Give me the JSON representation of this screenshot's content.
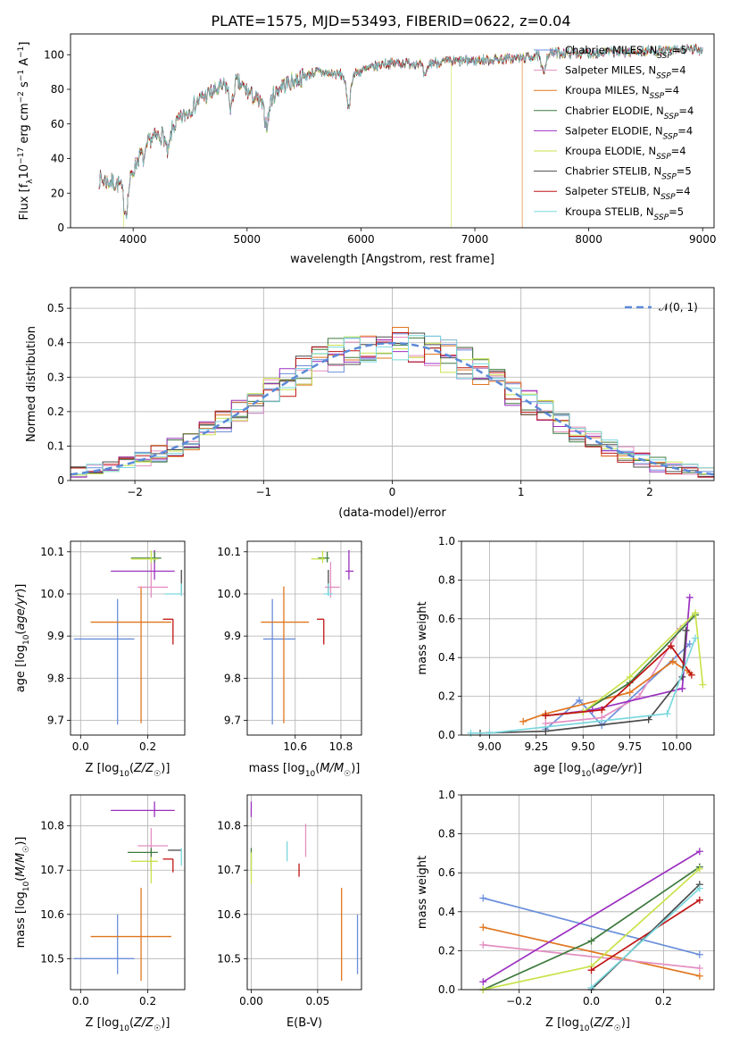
{
  "figure_title": "PLATE=1575, MJD=53493, FIBERID=0622, z=0.04",
  "colors": {
    "Chabrier MILES": "#6a8fdb",
    "Salpeter MILES": "#e38fc1",
    "Kroupa MILES": "#e0761f",
    "Chabrier ELODIE": "#3d7a3d",
    "Salpeter ELODIE": "#9b30c0",
    "Kroupa ELODIE": "#c9e34d",
    "Chabrier STELIB": "#4a4a4a",
    "Salpeter STELIB": "#c01414",
    "Kroupa STELIB": "#7ad8de"
  },
  "chart_data": [
    {
      "id": "spectrum",
      "type": "line",
      "xlabel": "wavelength [Angstrom, rest frame]",
      "ylabel": "Flux [f_λ 10^-17 erg cm^-2 s^-1 A^-1]",
      "xlim": [
        3450,
        9100
      ],
      "ylim": [
        0,
        112
      ],
      "xticks": [
        4000,
        5000,
        6000,
        7000,
        8000,
        9000
      ],
      "yticks": [
        0,
        20,
        40,
        60,
        80,
        100
      ],
      "x_range": [
        3700,
        9000
      ],
      "anchor_x": [
        3700,
        3950,
        4100,
        4300,
        4600,
        4900,
        5150,
        5300,
        5600,
        5900,
        6200,
        6500,
        6800,
        7100,
        7400,
        7700,
        8000,
        8500,
        9000
      ],
      "anchor_y": [
        28,
        24,
        50,
        55,
        75,
        85,
        70,
        82,
        90,
        88,
        95,
        95,
        96,
        97,
        98,
        101,
        101,
        102,
        103
      ],
      "features": [
        [
          3934,
          -15
        ],
        [
          4100,
          -10
        ],
        [
          4305,
          -12
        ],
        [
          4861,
          -14
        ],
        [
          5175,
          -12
        ],
        [
          5890,
          -18
        ],
        [
          6563,
          -8
        ],
        [
          7600,
          -10
        ]
      ],
      "legend": [
        {
          "label": "Chabrier MILES",
          "nssp": "5"
        },
        {
          "label": "Salpeter MILES",
          "nssp": "4"
        },
        {
          "label": "Kroupa MILES",
          "nssp": "4"
        },
        {
          "label": "Chabrier ELODIE",
          "nssp": "4"
        },
        {
          "label": "Salpeter ELODIE",
          "nssp": "4"
        },
        {
          "label": "Kroupa ELODIE",
          "nssp": "4"
        },
        {
          "label": "Chabrier STELIB",
          "nssp": "5"
        },
        {
          "label": "Salpeter STELIB",
          "nssp": "4"
        },
        {
          "label": "Kroupa STELIB",
          "nssp": "5"
        }
      ],
      "drops": [
        {
          "series": "Kroupa ELODIE",
          "x": 6790
        },
        {
          "series": "Kroupa MILES",
          "x": 7415
        },
        {
          "series": "Kroupa ELODIE",
          "x": 3920
        }
      ],
      "grid": false,
      "legend_position": "right"
    },
    {
      "id": "residuals",
      "type": "histogram",
      "xlabel": "(data-model)/error",
      "ylabel": "Normed distribution",
      "xlim": [
        -2.5,
        2.5
      ],
      "ylim": [
        0,
        0.56
      ],
      "xticks": [
        -2,
        -1,
        0,
        1,
        2
      ],
      "xticklabels": [
        "−2",
        "−1",
        "0",
        "1",
        "2"
      ],
      "yticks": [
        0.0,
        0.1,
        0.2,
        0.3,
        0.4,
        0.5
      ],
      "bins": 40,
      "reference_label": "𝒩(0, 1)",
      "reference_color": "#5b8ad8",
      "grid": true,
      "legend_position": "top-right"
    },
    {
      "id": "age-vs-Z",
      "type": "scatter",
      "xlabel": "Z [log10(Z/Z☉)]",
      "ylabel": "age  [log10(age/yr)]",
      "xlim": [
        -0.03,
        0.31
      ],
      "ylim": [
        9.665,
        10.125
      ],
      "xticks": [
        0.0,
        0.2
      ],
      "xticklabels": [
        "0.0",
        "0.2"
      ],
      "yticks": [
        9.7,
        9.8,
        9.9,
        10.0,
        10.1
      ],
      "yticklabels": [
        "9.7",
        "9.8",
        "9.9",
        "10.0",
        "10.1"
      ],
      "grid": true,
      "points": [
        {
          "series": "Chabrier MILES",
          "x": 0.11,
          "y": 9.893,
          "xerr": [
            0.13,
            0.05
          ],
          "yerr": [
            0.203,
            0.095
          ]
        },
        {
          "series": "Kroupa MILES",
          "x": 0.18,
          "y": 9.933,
          "xerr": [
            0.15,
            0.09
          ],
          "yerr": [
            0.24,
            0.085
          ]
        },
        {
          "series": "Salpeter MILES",
          "x": 0.21,
          "y": 10.016,
          "xerr": [
            0.04,
            0.05
          ],
          "yerr": [
            0.025,
            0.06
          ]
        },
        {
          "series": "Salpeter ELODIE",
          "x": 0.22,
          "y": 10.054,
          "xerr": [
            0.13,
            0.06
          ],
          "yerr": [
            0.02,
            0.05
          ]
        },
        {
          "series": "Chabrier ELODIE",
          "x": 0.22,
          "y": 10.085,
          "xerr": [
            0.07,
            0.02
          ],
          "yerr": [
            0.01,
            0.015
          ]
        },
        {
          "series": "Kroupa ELODIE",
          "x": 0.21,
          "y": 10.083,
          "xerr": [
            0.06,
            0.02
          ],
          "yerr": [
            0.01,
            0.02
          ]
        },
        {
          "series": "Salpeter STELIB",
          "x": 0.275,
          "y": 9.94,
          "xerr": [
            0.03,
            0.0
          ],
          "yerr": [
            0.06,
            0.0
          ]
        },
        {
          "series": "Chabrier STELIB",
          "x": 0.3,
          "y": 10.032,
          "xerr": [
            0.0,
            0.0
          ],
          "yerr": [
            0.03,
            0.025
          ]
        },
        {
          "series": "Kroupa STELIB",
          "x": 0.3,
          "y": 10.0,
          "xerr": [
            0.05,
            0.0
          ],
          "yerr": [
            0.005,
            0.025
          ]
        }
      ]
    },
    {
      "id": "age-vs-mass",
      "type": "scatter",
      "xlabel": "mass [log10(M/M☉)]",
      "ylabel": "",
      "xlim": [
        10.39,
        10.89
      ],
      "ylim": [
        9.665,
        10.125
      ],
      "xticks": [
        10.6,
        10.8
      ],
      "xticklabels": [
        "10.6",
        "10.8"
      ],
      "yticks": [
        9.7,
        9.8,
        9.9,
        10.0,
        10.1
      ],
      "yticklabels": [
        "9.7",
        "9.8",
        "9.9",
        "10.0",
        "10.1"
      ],
      "grid": true,
      "points": [
        {
          "series": "Chabrier MILES",
          "x": 10.5,
          "y": 9.893,
          "xerr": [
            0.04,
            0.1
          ],
          "yerr": [
            0.203,
            0.095
          ]
        },
        {
          "series": "Kroupa MILES",
          "x": 10.55,
          "y": 9.933,
          "xerr": [
            0.1,
            0.11
          ],
          "yerr": [
            0.24,
            0.085
          ]
        },
        {
          "series": "Salpeter MILES",
          "x": 10.755,
          "y": 10.016,
          "xerr": [
            0.025,
            0.04
          ],
          "yerr": [
            0.025,
            0.06
          ]
        },
        {
          "series": "Salpeter ELODIE",
          "x": 10.835,
          "y": 10.054,
          "xerr": [
            0.015,
            0.02
          ],
          "yerr": [
            0.02,
            0.05
          ]
        },
        {
          "series": "Chabrier ELODIE",
          "x": 10.74,
          "y": 10.085,
          "xerr": [
            0.04,
            0.01
          ],
          "yerr": [
            0.01,
            0.015
          ]
        },
        {
          "series": "Kroupa ELODIE",
          "x": 10.72,
          "y": 10.083,
          "xerr": [
            0.05,
            0.01
          ],
          "yerr": [
            0.01,
            0.02
          ]
        },
        {
          "series": "Salpeter STELIB",
          "x": 10.725,
          "y": 9.94,
          "xerr": [
            0.03,
            0.0
          ],
          "yerr": [
            0.06,
            0.0
          ]
        },
        {
          "series": "Chabrier STELIB",
          "x": 10.745,
          "y": 10.032,
          "xerr": [
            0.0,
            0.0
          ],
          "yerr": [
            0.03,
            0.025
          ]
        },
        {
          "series": "Kroupa STELIB",
          "x": 10.745,
          "y": 10.0,
          "xerr": [
            0.02,
            0.02
          ],
          "yerr": [
            0.005,
            0.025
          ]
        }
      ]
    },
    {
      "id": "weights-vs-age",
      "type": "line",
      "xlabel": "age  [log10(age/yr)]",
      "ylabel": "mass weight",
      "xlim": [
        8.85,
        10.2
      ],
      "ylim": [
        0.0,
        1.0
      ],
      "xticks": [
        9.0,
        9.25,
        9.5,
        9.75,
        10.0
      ],
      "xticklabels": [
        "9.00",
        "9.25",
        "9.50",
        "9.75",
        "10.00"
      ],
      "yticks": [
        0.0,
        0.2,
        0.4,
        0.6,
        0.8,
        1.0
      ],
      "yticklabels": [
        "0.0",
        "0.2",
        "0.4",
        "0.6",
        "0.8",
        "1.0"
      ],
      "grid": true,
      "series": [
        {
          "name": "Chabrier MILES",
          "x": [
            9.3,
            9.48,
            9.6,
            10.07
          ],
          "y": [
            0.03,
            0.18,
            0.05,
            0.47
          ]
        },
        {
          "name": "Salpeter MILES",
          "x": [
            9.3,
            9.6,
            9.8,
            10.02
          ],
          "y": [
            0.06,
            0.09,
            0.2,
            0.55
          ]
        },
        {
          "name": "Kroupa MILES",
          "x": [
            9.18,
            9.3,
            9.75,
            9.98,
            10.07
          ],
          "y": [
            0.07,
            0.11,
            0.22,
            0.38,
            0.32
          ]
        },
        {
          "name": "Chabrier ELODIE",
          "x": [
            9.3,
            9.5,
            9.75,
            10.1
          ],
          "y": [
            0.1,
            0.12,
            0.27,
            0.62
          ]
        },
        {
          "name": "Salpeter ELODIE",
          "x": [
            9.3,
            9.55,
            10.03,
            10.07
          ],
          "y": [
            0.1,
            0.13,
            0.24,
            0.71
          ]
        },
        {
          "name": "Kroupa ELODIE",
          "x": [
            9.3,
            9.5,
            9.75,
            10.1,
            10.14
          ],
          "y": [
            0.1,
            0.12,
            0.3,
            0.63,
            0.26
          ]
        },
        {
          "name": "Chabrier STELIB",
          "x": [
            8.95,
            9.3,
            9.85,
            10.03,
            10.05
          ],
          "y": [
            0.01,
            0.02,
            0.08,
            0.3,
            0.54
          ]
        },
        {
          "name": "Salpeter STELIB",
          "x": [
            9.3,
            9.6,
            9.97,
            10.08
          ],
          "y": [
            0.1,
            0.13,
            0.46,
            0.31
          ]
        },
        {
          "name": "Kroupa STELIB",
          "x": [
            8.9,
            9.0,
            9.95,
            10.1
          ],
          "y": [
            0.01,
            0.01,
            0.11,
            0.5
          ]
        }
      ]
    },
    {
      "id": "mass-vs-Z",
      "type": "scatter",
      "xlabel": "Z [log10(Z/Z☉)]",
      "ylabel": "mass [log10(M/M☉)]",
      "xlim": [
        -0.03,
        0.31
      ],
      "ylim": [
        10.43,
        10.87
      ],
      "xticks": [
        0.0,
        0.2
      ],
      "xticklabels": [
        "0.0",
        "0.2"
      ],
      "yticks": [
        10.5,
        10.6,
        10.7,
        10.8
      ],
      "yticklabels": [
        "10.5",
        "10.6",
        "10.7",
        "10.8"
      ],
      "grid": true,
      "points": [
        {
          "series": "Chabrier MILES",
          "x": 0.11,
          "y": 10.5,
          "xerr": [
            0.13,
            0.05
          ],
          "yerr": [
            0.035,
            0.1
          ]
        },
        {
          "series": "Kroupa MILES",
          "x": 0.18,
          "y": 10.55,
          "xerr": [
            0.15,
            0.09
          ],
          "yerr": [
            0.1,
            0.11
          ]
        },
        {
          "series": "Salpeter MILES",
          "x": 0.21,
          "y": 10.755,
          "xerr": [
            0.04,
            0.05
          ],
          "yerr": [
            0.025,
            0.04
          ]
        },
        {
          "series": "Salpeter ELODIE",
          "x": 0.22,
          "y": 10.835,
          "xerr": [
            0.13,
            0.06
          ],
          "yerr": [
            0.015,
            0.02
          ]
        },
        {
          "series": "Chabrier ELODIE",
          "x": 0.21,
          "y": 10.74,
          "xerr": [
            0.07,
            0.02
          ],
          "yerr": [
            0.04,
            0.01
          ]
        },
        {
          "series": "Kroupa ELODIE",
          "x": 0.21,
          "y": 10.72,
          "xerr": [
            0.06,
            0.02
          ],
          "yerr": [
            0.05,
            0.01
          ]
        },
        {
          "series": "Salpeter STELIB",
          "x": 0.275,
          "y": 10.725,
          "xerr": [
            0.03,
            0.0
          ],
          "yerr": [
            0.03,
            0.0
          ]
        },
        {
          "series": "Chabrier STELIB",
          "x": 0.3,
          "y": 10.745,
          "xerr": [
            0.04,
            0.0
          ],
          "yerr": [
            0.0,
            0.0
          ]
        },
        {
          "series": "Kroupa STELIB",
          "x": 0.3,
          "y": 10.73,
          "xerr": [
            0.0,
            0.0
          ],
          "yerr": [
            0.02,
            0.02
          ]
        }
      ]
    },
    {
      "id": "mass-vs-EBV",
      "type": "scatter",
      "xlabel": "E(B-V)",
      "ylabel": "",
      "xlim": [
        -0.003,
        0.083
      ],
      "ylim": [
        10.43,
        10.87
      ],
      "xticks": [
        0.0,
        0.05
      ],
      "xticklabels": [
        "0.00",
        "0.05"
      ],
      "yticks": [
        10.5,
        10.6,
        10.7,
        10.8
      ],
      "yticklabels": [
        "10.5",
        "10.6",
        "10.7",
        "10.8"
      ],
      "grid": true,
      "points": [
        {
          "series": "Chabrier MILES",
          "x": 0.08,
          "y": 10.5,
          "xerr": [
            0,
            0
          ],
          "yerr": [
            0.035,
            0.1
          ]
        },
        {
          "series": "Kroupa MILES",
          "x": 0.068,
          "y": 10.55,
          "xerr": [
            0,
            0
          ],
          "yerr": [
            0.1,
            0.11
          ]
        },
        {
          "series": "Salpeter MILES",
          "x": 0.041,
          "y": 10.755,
          "xerr": [
            0,
            0
          ],
          "yerr": [
            0.025,
            0.05
          ]
        },
        {
          "series": "Salpeter ELODIE",
          "x": 0.0,
          "y": 10.835,
          "xerr": [
            0,
            0
          ],
          "yerr": [
            0.015,
            0.02
          ]
        },
        {
          "series": "Chabrier ELODIE",
          "x": 0.0,
          "y": 10.74,
          "xerr": [
            0,
            0
          ],
          "yerr": [
            0.04,
            0.01
          ]
        },
        {
          "series": "Kroupa ELODIE",
          "x": 0.0,
          "y": 10.72,
          "xerr": [
            0,
            0
          ],
          "yerr": [
            0.05,
            0.02
          ]
        },
        {
          "series": "Salpeter STELIB",
          "x": 0.036,
          "y": 10.705,
          "xerr": [
            0,
            0
          ],
          "yerr": [
            0.02,
            0.01
          ]
        },
        {
          "series": "Chabrier STELIB",
          "x": 0.023,
          "y": 10.745,
          "xerr": [
            0,
            0
          ],
          "yerr": [
            0.0,
            0.0
          ]
        },
        {
          "series": "Kroupa STELIB",
          "x": 0.027,
          "y": 10.74,
          "xerr": [
            0,
            0
          ],
          "yerr": [
            0.02,
            0.025
          ]
        }
      ]
    },
    {
      "id": "weights-vs-Z",
      "type": "line",
      "xlabel": "Z [log10(Z/Z☉)]",
      "ylabel": "mass weight",
      "xlim": [
        -0.36,
        0.34
      ],
      "ylim": [
        0.0,
        1.0
      ],
      "xticks": [
        -0.2,
        0.0,
        0.2
      ],
      "xticklabels": [
        "−0.2",
        "0.0",
        "0.2"
      ],
      "yticks": [
        0.0,
        0.2,
        0.4,
        0.6,
        0.8,
        1.0
      ],
      "yticklabels": [
        "0.0",
        "0.2",
        "0.4",
        "0.6",
        "0.8",
        "1.0"
      ],
      "grid": true,
      "series": [
        {
          "name": "Chabrier MILES",
          "x": [
            -0.3,
            0.3
          ],
          "y": [
            0.47,
            0.18
          ]
        },
        {
          "name": "Kroupa MILES",
          "x": [
            -0.3,
            0.3
          ],
          "y": [
            0.32,
            0.07
          ]
        },
        {
          "name": "Salpeter MILES",
          "x": [
            -0.3,
            0.3
          ],
          "y": [
            0.23,
            0.11
          ]
        },
        {
          "name": "Salpeter ELODIE",
          "x": [
            -0.3,
            0.3
          ],
          "y": [
            0.04,
            0.71
          ]
        },
        {
          "name": "Chabrier ELODIE",
          "x": [
            -0.3,
            0.0,
            0.3
          ],
          "y": [
            0.0,
            0.25,
            0.63
          ]
        },
        {
          "name": "Kroupa ELODIE",
          "x": [
            -0.3,
            0.0,
            0.3
          ],
          "y": [
            0.0,
            0.12,
            0.62
          ]
        },
        {
          "name": "Salpeter STELIB",
          "x": [
            0.0,
            0.3
          ],
          "y": [
            0.1,
            0.46
          ]
        },
        {
          "name": "Chabrier STELIB",
          "x": [
            0.0,
            0.3
          ],
          "y": [
            0.0,
            0.54
          ]
        },
        {
          "name": "Kroupa STELIB",
          "x": [
            0.0,
            0.3
          ],
          "y": [
            0.01,
            0.52
          ]
        }
      ]
    }
  ]
}
